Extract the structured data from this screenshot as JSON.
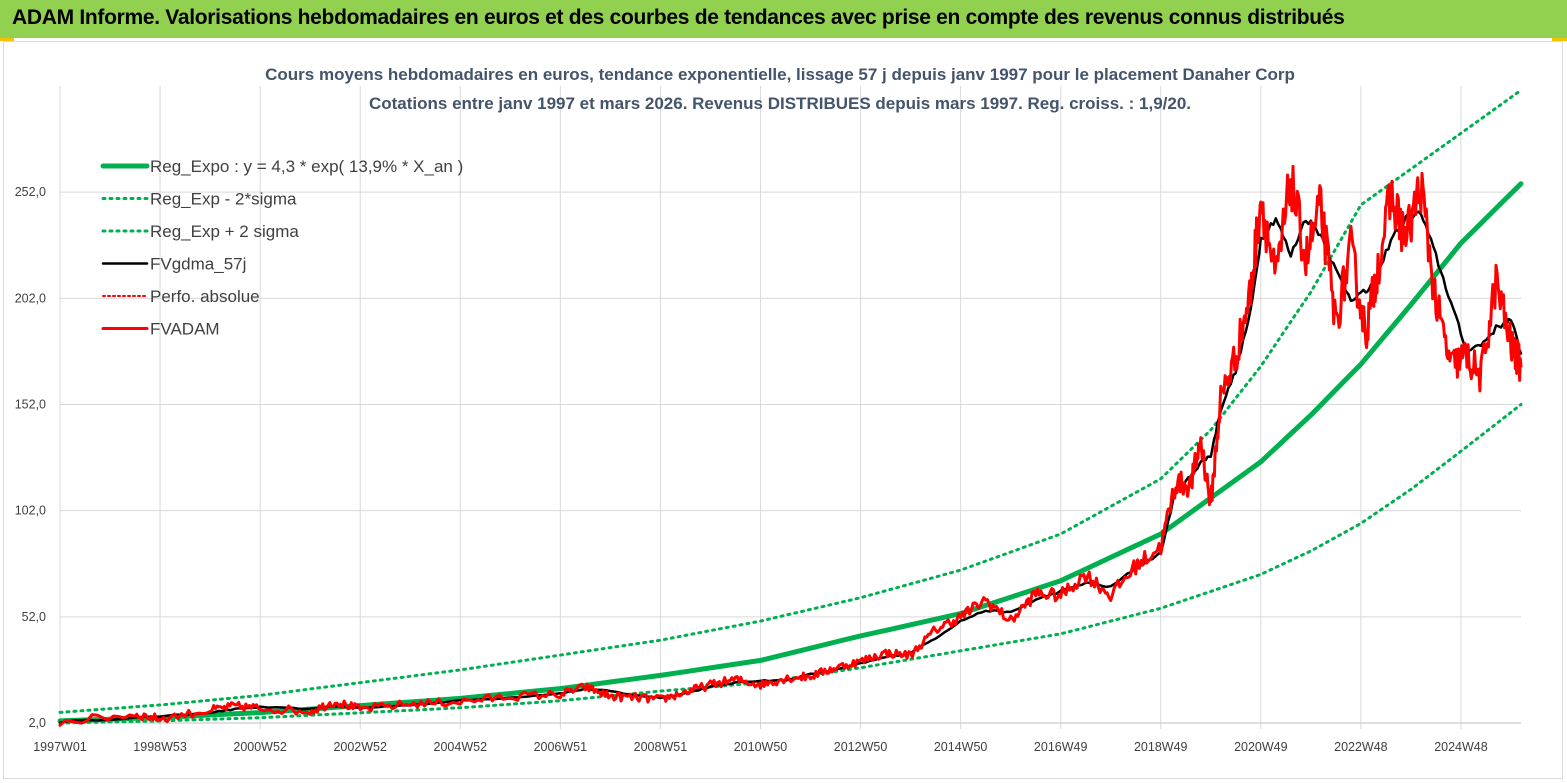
{
  "header": {
    "banner": "ADAM Informe. Valorisations hebdomadaires en euros et des courbes de tendances avec prise en compte des revenus connus distribués"
  },
  "colors": {
    "banner_bg": "#92d050",
    "reg_green": "#00b050",
    "fv_black": "#000000",
    "fvadam_red": "#ff0000",
    "title_text": "#44546a",
    "grid": "#d9d9d9"
  },
  "chart_data": {
    "type": "line",
    "title": "Cours moyens hebdomadaires en euros, tendance exponentielle, lissage 57 j depuis janv 1997 pour le placement Danaher Corp",
    "subtitle": "Cotations entre janv 1997 et mars 2026. Revenus DISTRIBUES depuis mars 1997. Reg. croiss. : 1,9/20.",
    "xlabel": "",
    "ylabel": "",
    "x_start_year": 1997.0,
    "x_end_year": 2026.2,
    "ylim": [
      2.0,
      302.0
    ],
    "y_ticks": [
      "2,0",
      "52,0",
      "102,0",
      "152,0",
      "202,0",
      "252,0"
    ],
    "y_tick_values": [
      2,
      52,
      102,
      152,
      202,
      252
    ],
    "x_tick_labels": [
      "1997W01",
      "1998W53",
      "2000W52",
      "2002W52",
      "2004W52",
      "2006W51",
      "2008W51",
      "2010W50",
      "2012W50",
      "2014W50",
      "2016W49",
      "2018W49",
      "2020W49",
      "2022W48",
      "2024W48"
    ],
    "x_tick_years": [
      1997.0,
      1999.0,
      2001.0,
      2003.0,
      2005.0,
      2007.0,
      2009.0,
      2011.0,
      2013.0,
      2015.0,
      2017.0,
      2019.0,
      2021.0,
      2023.0,
      2025.0
    ],
    "legend": [
      {
        "key": "reg",
        "label": "Reg_Expo : y = 4,3 * exp( 13,9% *  X_an )"
      },
      {
        "key": "lower",
        "label": "Reg_Exp - 2*sigma"
      },
      {
        "key": "upper",
        "label": "Reg_Exp + 2 sigma"
      },
      {
        "key": "fv",
        "label": "FVgdma_57j"
      },
      {
        "key": "perfo",
        "label": "Perfo. absolue"
      },
      {
        "key": "fvadam",
        "label": "FVADAM"
      }
    ],
    "series": [
      {
        "name": "Reg_Expo : y = 4,3 * exp( 13,9% *  X_an )",
        "x": [
          1997.0,
          1999.0,
          2001.0,
          2003.0,
          2005.0,
          2007.0,
          2009.0,
          2011.0,
          2013.0,
          2015.0,
          2017.0,
          2019.0,
          2021.0,
          2022.0,
          2023.0,
          2024.0,
          2025.0,
          2026.2
        ],
        "values": [
          3.0,
          4.6,
          6.9,
          10.2,
          13.6,
          18.2,
          24.4,
          31.5,
          43.0,
          53.5,
          69.0,
          91.0,
          125.0,
          147.0,
          171.0,
          199.0,
          228.0,
          256.0
        ]
      },
      {
        "name": "Reg_Exp - 2*sigma",
        "x": [
          1997.0,
          1999.0,
          2001.0,
          2003.0,
          2005.0,
          2007.0,
          2009.0,
          2011.0,
          2013.0,
          2015.0,
          2017.0,
          2019.0,
          2021.0,
          2022.0,
          2023.0,
          2024.0,
          2025.0,
          2026.2
        ],
        "values": [
          2.0,
          3.0,
          4.5,
          6.8,
          9.2,
          12.5,
          17.0,
          21.0,
          28.0,
          36.0,
          44.0,
          56.0,
          72.0,
          83.0,
          96.0,
          112.0,
          130.0,
          152.0
        ]
      },
      {
        "name": "Reg_Exp + 2 sigma",
        "x": [
          1997.0,
          1999.0,
          2001.0,
          2003.0,
          2005.0,
          2007.0,
          2009.0,
          2011.0,
          2013.0,
          2015.0,
          2017.0,
          2019.0,
          2020.0,
          2021.0,
          2022.0,
          2023.0,
          2026.2
        ],
        "values": [
          7.0,
          10.5,
          15.0,
          21.0,
          27.0,
          34.0,
          41.0,
          50.0,
          61.0,
          74.0,
          91.0,
          117.0,
          140.0,
          170.0,
          205.0,
          246.0,
          300.0
        ],
        "cap": 300.0
      },
      {
        "name": "FVgdma_57j",
        "x": [
          1997.0,
          1998.5,
          1999.0,
          2000.0,
          2000.5,
          2001.0,
          2002.0,
          2002.5,
          2003.0,
          2004.0,
          2005.0,
          2006.0,
          2007.0,
          2007.5,
          2008.0,
          2008.5,
          2009.0,
          2009.5,
          2010.0,
          2010.5,
          2011.0,
          2011.5,
          2012.0,
          2012.5,
          2013.0,
          2013.5,
          2014.0,
          2014.5,
          2015.0,
          2015.5,
          2016.0,
          2016.5,
          2017.0,
          2017.5,
          2018.0,
          2018.5,
          2019.0,
          2019.3,
          2019.6,
          2019.8,
          2020.0,
          2020.2,
          2020.5,
          2020.8,
          2021.0,
          2021.3,
          2021.6,
          2021.9,
          2022.2,
          2022.5,
          2022.8,
          2023.1,
          2023.3,
          2023.6,
          2023.9,
          2024.2,
          2024.5,
          2024.8,
          2025.1,
          2025.4,
          2025.7,
          2026.0,
          2026.2
        ],
        "values": [
          2.5,
          4.5,
          5.0,
          7.0,
          8.5,
          9.5,
          8.5,
          10.0,
          9.0,
          10.5,
          12.5,
          14.0,
          16.0,
          18.0,
          17.0,
          15.0,
          14.0,
          16.0,
          19.0,
          21.0,
          22.0,
          22.0,
          25.0,
          27.0,
          30.0,
          33.0,
          35.0,
          42.0,
          50.0,
          55.0,
          54.0,
          60.0,
          64.0,
          68.0,
          66.0,
          75.0,
          82.0,
          112.0,
          118.0,
          125.0,
          128.0,
          150.0,
          168.0,
          196.0,
          230.0,
          240.0,
          222.0,
          240.0,
          232.0,
          215.0,
          202.0,
          205.0,
          210.0,
          230.0,
          240.0,
          242.0,
          222.0,
          200.0,
          178.0,
          180.0,
          188.0,
          192.0,
          176.0
        ]
      },
      {
        "name": "Perfo. absolue",
        "x": [
          1997.0,
          2026.2
        ],
        "values": [
          2.5,
          176.0
        ],
        "hidden": true
      },
      {
        "name": "FVADAM",
        "x": [
          1997.0,
          1998.5,
          1999.0,
          2000.0,
          2000.5,
          2001.0,
          2002.0,
          2002.5,
          2003.0,
          2004.0,
          2005.0,
          2006.0,
          2007.0,
          2007.5,
          2008.0,
          2008.5,
          2009.0,
          2009.5,
          2010.0,
          2010.5,
          2011.0,
          2011.5,
          2012.0,
          2012.5,
          2013.0,
          2013.5,
          2014.0,
          2014.5,
          2015.0,
          2015.5,
          2016.0,
          2016.5,
          2017.0,
          2017.5,
          2018.0,
          2018.5,
          2019.0,
          2019.3,
          2019.6,
          2019.8,
          2020.0,
          2020.2,
          2020.5,
          2020.8,
          2021.0,
          2021.3,
          2021.6,
          2021.9,
          2022.2,
          2022.5,
          2022.8,
          2023.1,
          2023.3,
          2023.6,
          2023.9,
          2024.2,
          2024.5,
          2024.8,
          2025.1,
          2025.4,
          2025.7,
          2026.0,
          2026.2
        ],
        "values": [
          2.5,
          6.0,
          4.0,
          8.0,
          10.0,
          9.0,
          7.5,
          12.0,
          8.5,
          11.0,
          12.0,
          14.5,
          15.5,
          19.0,
          14.5,
          14.0,
          13.0,
          16.5,
          20.0,
          22.5,
          20.0,
          23.0,
          24.0,
          28.0,
          31.0,
          35.0,
          34.0,
          46.0,
          52.0,
          60.0,
          50.0,
          63.0,
          62.0,
          72.0,
          62.0,
          76.0,
          85.0,
          115.0,
          114.0,
          135.0,
          105.0,
          155.0,
          175.0,
          205.0,
          250.0,
          210.0,
          258.0,
          220.0,
          245.0,
          190.0,
          225.0,
          185.0,
          212.0,
          250.0,
          230.0,
          255.0,
          200.0,
          170.0,
          175.0,
          165.0,
          210.0,
          180.0,
          170.0
        ]
      }
    ]
  }
}
